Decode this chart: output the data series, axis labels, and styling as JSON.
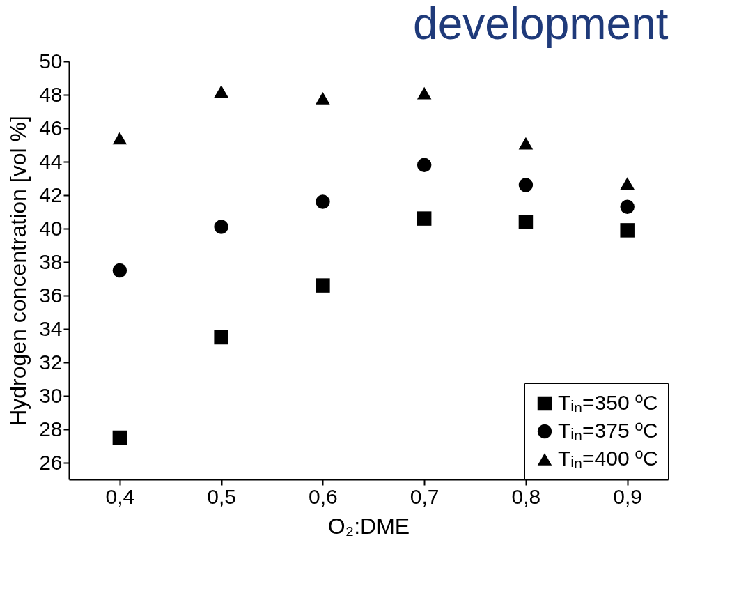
{
  "chart_data": {
    "type": "scatter",
    "title": "development",
    "xlabel": "O₂:DME",
    "ylabel": "Hydrogen concentration [vol %]",
    "x": [
      0.4,
      0.5,
      0.6,
      0.7,
      0.8,
      0.9
    ],
    "xlim": [
      0.35,
      0.94
    ],
    "xticks": [
      {
        "value": 0.4,
        "label": "0,4"
      },
      {
        "value": 0.5,
        "label": "0,5"
      },
      {
        "value": 0.6,
        "label": "0,6"
      },
      {
        "value": 0.7,
        "label": "0,7"
      },
      {
        "value": 0.8,
        "label": "0,8"
      },
      {
        "value": 0.9,
        "label": "0,9"
      }
    ],
    "ylim": [
      25,
      50
    ],
    "yticks": [
      26,
      28,
      30,
      32,
      34,
      36,
      38,
      40,
      42,
      44,
      46,
      48,
      50
    ],
    "grid": false,
    "legend": "bottom right",
    "series": [
      {
        "name": "Tᵢₙ=350 ºC",
        "color": "#000000",
        "marker": "square",
        "values": [
          27.5,
          33.5,
          36.6,
          40.6,
          40.4,
          39.9
        ]
      },
      {
        "name": "Tᵢₙ=375 ºC",
        "color": "#000000",
        "marker": "circle",
        "values": [
          37.5,
          40.1,
          41.6,
          43.8,
          42.6,
          41.3
        ]
      },
      {
        "name": "Tᵢₙ=400 ºC",
        "color": "#000000",
        "marker": "triangle",
        "values": [
          45.4,
          48.2,
          47.8,
          48.1,
          45.1,
          42.7
        ]
      }
    ]
  }
}
